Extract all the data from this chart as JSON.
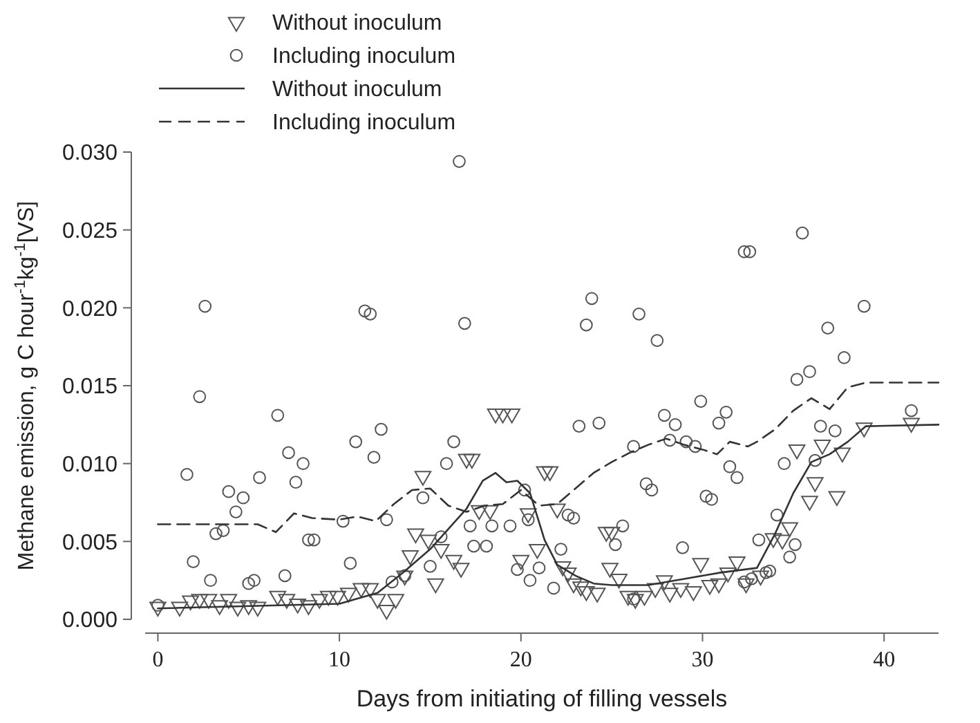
{
  "chart_data": {
    "type": "scatter",
    "xlabel": "Days from initiating of filling vessels",
    "ylabel": "Methane emission, g C hour$^{-1}$kg$^{-1}$[VS]",
    "xlim": [
      -0.7,
      43
    ],
    "ylim": [
      0,
      0.03
    ],
    "xticks": [
      0,
      10,
      20,
      30,
      40
    ],
    "yticks": [
      {
        "value": 0,
        "label": "0.000"
      },
      {
        "value": 0.005,
        "label": "0.005"
      },
      {
        "value": 0.01,
        "label": "0.010"
      },
      {
        "value": 0.015,
        "label": "0.015"
      },
      {
        "value": 0.02,
        "label": "0.020"
      },
      {
        "value": 0.025,
        "label": "0.025"
      },
      {
        "value": 0.03,
        "label": "0.030"
      }
    ],
    "grid": false,
    "legend": "top left",
    "series": [
      {
        "name": "Without inoculum",
        "marker": "triangle",
        "color": "#555555",
        "x": [
          0,
          1.2,
          1.8,
          2.3,
          2.8,
          3.4,
          3.9,
          4.4,
          5.0,
          5.5,
          6.6,
          7.1,
          7.7,
          8.3,
          8.9,
          9.4,
          9.9,
          10.5,
          11.2,
          11.7,
          12.1,
          12.6,
          13.1,
          13.6,
          13.9,
          14.2,
          14.6,
          14.9,
          15.3,
          15.6,
          16.3,
          16.7,
          17.0,
          17.3,
          17.7,
          18.3,
          18.6,
          19.0,
          19.5,
          20.0,
          20.4,
          20.9,
          21.3,
          21.6,
          22.0,
          22.3,
          22.6,
          22.9,
          23.3,
          23.6,
          24.2,
          24.7,
          25.0,
          24.9,
          25.4,
          25.9,
          26.3,
          26.8,
          27.4,
          27.9,
          28.2,
          28.8,
          29.5,
          29.9,
          30.4,
          30.9,
          31.4,
          31.9,
          32.4,
          33.2,
          33.9,
          34.4,
          34.8,
          35.2,
          35.9,
          36.2,
          36.6,
          37.4,
          37.7,
          38.9,
          41.5
        ],
        "values": [
          0.0008,
          0.0008,
          0.0012,
          0.0013,
          0.0013,
          0.0009,
          0.0013,
          0.0008,
          0.0009,
          0.0008,
          0.0015,
          0.0013,
          0.001,
          0.0009,
          0.0013,
          0.0015,
          0.0015,
          0.0017,
          0.002,
          0.002,
          0.0013,
          0.0006,
          0.0013,
          0.0028,
          0.0041,
          0.0055,
          0.0092,
          0.0051,
          0.0023,
          0.0045,
          0.0038,
          0.0033,
          0.0103,
          0.0103,
          0.007,
          0.007,
          0.0132,
          0.0132,
          0.0132,
          0.0038,
          0.0068,
          0.0045,
          0.0095,
          0.0095,
          0.0071,
          0.0034,
          0.003,
          0.0023,
          0.0021,
          0.0018,
          0.0017,
          0.0056,
          0.0056,
          0.0033,
          0.0026,
          0.0015,
          0.0013,
          0.0015,
          0.002,
          0.0025,
          0.0017,
          0.002,
          0.0018,
          0.0036,
          0.0022,
          0.0023,
          0.003,
          0.0037,
          0.0023,
          0.0028,
          0.0052,
          0.0051,
          0.0059,
          0.0109,
          0.0076,
          0.0088,
          0.0112,
          0.0079,
          0.0107,
          0.0123,
          0.0126
        ]
      },
      {
        "name": "Including inoculum",
        "marker": "circle",
        "color": "#555555",
        "x": [
          0,
          1.6,
          1.95,
          2.3,
          2.6,
          2.9,
          3.2,
          3.6,
          3.9,
          4.3,
          4.7,
          5.0,
          5.3,
          5.6,
          6.6,
          7.0,
          7.2,
          7.6,
          8.0,
          8.3,
          8.6,
          10.2,
          10.6,
          10.9,
          11.4,
          11.7,
          11.9,
          12.3,
          12.6,
          12.9,
          13.6,
          14.6,
          15.0,
          15.6,
          15.9,
          16.3,
          16.6,
          16.9,
          17.2,
          17.4,
          18.1,
          18.4,
          19.4,
          19.8,
          20.2,
          20.4,
          20.5,
          21.0,
          21.8,
          22.2,
          22.6,
          22.9,
          23.2,
          23.6,
          23.9,
          24.3,
          25.2,
          25.6,
          26.2,
          26.2,
          26.5,
          26.9,
          27.2,
          27.5,
          27.9,
          28.2,
          28.5,
          28.9,
          29.1,
          29.6,
          29.9,
          30.2,
          30.5,
          30.9,
          31.3,
          31.5,
          31.9,
          32.3,
          32.6,
          32.3,
          32.7,
          33.1,
          33.5,
          33.7,
          34.1,
          34.5,
          34.8,
          35.1,
          35.2,
          35.5,
          35.9,
          36.2,
          36.5,
          36.9,
          37.3,
          37.8,
          38.9,
          41.5
        ],
        "values": [
          0.0009,
          0.0093,
          0.0037,
          0.0143,
          0.0201,
          0.0025,
          0.0055,
          0.0057,
          0.0082,
          0.0069,
          0.0078,
          0.0023,
          0.0025,
          0.0091,
          0.0131,
          0.0028,
          0.0107,
          0.0088,
          0.01,
          0.0051,
          0.0051,
          0.0063,
          0.0036,
          0.0114,
          0.0198,
          0.0196,
          0.0104,
          0.0122,
          0.0064,
          0.0024,
          0.0028,
          0.0078,
          0.0034,
          0.0053,
          0.01,
          0.0114,
          0.0294,
          0.019,
          0.006,
          0.0047,
          0.0047,
          0.006,
          0.006,
          0.0032,
          0.0083,
          0.0064,
          0.0025,
          0.0033,
          0.002,
          0.0045,
          0.0067,
          0.0065,
          0.0124,
          0.0189,
          0.0206,
          0.0126,
          0.0048,
          0.006,
          0.0013,
          0.0111,
          0.0196,
          0.0087,
          0.0083,
          0.0179,
          0.0131,
          0.0115,
          0.0125,
          0.0046,
          0.0114,
          0.0111,
          0.014,
          0.0079,
          0.0077,
          0.0126,
          0.0133,
          0.0098,
          0.0091,
          0.0236,
          0.0236,
          0.0024,
          0.0026,
          0.0051,
          0.003,
          0.0031,
          0.0067,
          0.01,
          0.004,
          0.0048,
          0.0154,
          0.0248,
          0.0159,
          0.0102,
          0.0124,
          0.0187,
          0.0121,
          0.0168,
          0.0201,
          0.0134
        ]
      },
      {
        "name": "Without inoculum",
        "type": "line",
        "line_style": "solid",
        "color": "#333333",
        "x": [
          0,
          10,
          12.1,
          13.5,
          15,
          16,
          17,
          17.9,
          18.6,
          19.2,
          19.8,
          20.5,
          21.3,
          22,
          23,
          24,
          25,
          27,
          28,
          29,
          31,
          33,
          34,
          35,
          36,
          37,
          38,
          39,
          43
        ],
        "values": [
          0.0007,
          0.001,
          0.0017,
          0.003,
          0.0045,
          0.0058,
          0.0071,
          0.0089,
          0.0094,
          0.0088,
          0.0089,
          0.0081,
          0.0051,
          0.0035,
          0.0028,
          0.0023,
          0.0022,
          0.0022,
          0.0024,
          0.0026,
          0.003,
          0.0033,
          0.0055,
          0.0081,
          0.0101,
          0.0106,
          0.0114,
          0.0124,
          0.0125
        ]
      },
      {
        "name": "Including inoculum",
        "type": "line",
        "line_style": "dashed",
        "color": "#333333",
        "x": [
          0,
          5.5,
          6.5,
          7.5,
          8.5,
          10,
          11,
          12,
          13,
          14,
          15,
          16,
          17,
          18,
          19,
          20,
          21,
          22,
          23,
          24,
          25,
          26,
          27,
          28,
          29,
          30,
          30.8,
          31.5,
          32.5,
          33,
          34,
          35,
          36,
          37,
          38,
          39,
          43
        ],
        "values": [
          0.0061,
          0.0061,
          0.0056,
          0.0068,
          0.0065,
          0.0064,
          0.0066,
          0.0063,
          0.0074,
          0.0083,
          0.0084,
          0.0073,
          0.0069,
          0.0073,
          0.0074,
          0.0083,
          0.0073,
          0.0074,
          0.0084,
          0.0094,
          0.0101,
          0.0107,
          0.0112,
          0.0116,
          0.0112,
          0.0109,
          0.0106,
          0.0114,
          0.0111,
          0.0114,
          0.0122,
          0.0134,
          0.0142,
          0.0135,
          0.0149,
          0.0152,
          0.0152
        ]
      }
    ]
  }
}
